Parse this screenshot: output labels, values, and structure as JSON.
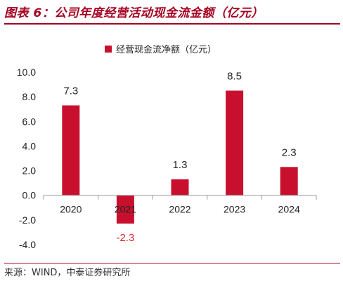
{
  "figure": {
    "title": "图表 6：公司年度经营活动现金流金额（亿元）",
    "source": "来源：WIND，中泰证券研究所"
  },
  "colors": {
    "bar": "#c8102e",
    "accent": "#a50021",
    "negative_label": "#e0262b",
    "axis": "#9a9a9a"
  },
  "chart_data": {
    "type": "bar",
    "title": "",
    "xlabel": "",
    "ylabel": "",
    "categories": [
      "2020",
      "2021",
      "2022",
      "2023",
      "2024"
    ],
    "series": [
      {
        "name": "经营现金流净额（亿元）",
        "values": [
          7.3,
          -2.3,
          1.3,
          8.5,
          2.3
        ]
      }
    ],
    "data_labels": [
      "7.3",
      "-2.3",
      "1.3",
      "8.5",
      "2.3"
    ],
    "ylim": [
      -4.0,
      10.0
    ],
    "yticks": [
      "10.0",
      "8.0",
      "6.0",
      "4.0",
      "2.0",
      "0.0",
      "-2.0",
      "-4.0"
    ],
    "legend_position": "top-center",
    "grid": false
  }
}
